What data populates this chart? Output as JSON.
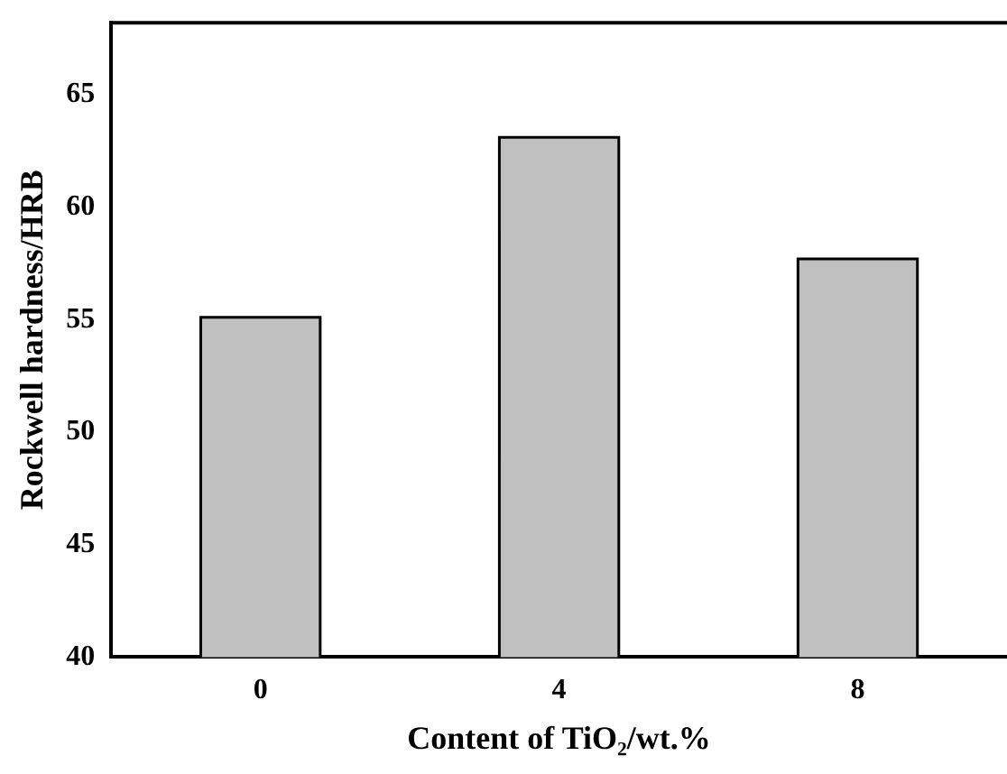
{
  "chart_data": {
    "type": "bar",
    "xlabel": "Content of TiO₂/wt.%",
    "ylabel": "Rockwell hardness/HRB",
    "categories": [
      "0",
      "4",
      "8"
    ],
    "values": [
      55.1,
      63.1,
      57.7
    ],
    "color": "#c0c0c0",
    "ylim": [
      40,
      68.2
    ],
    "yticks": [
      40,
      45,
      50,
      55,
      60,
      65
    ],
    "grid": false
  }
}
